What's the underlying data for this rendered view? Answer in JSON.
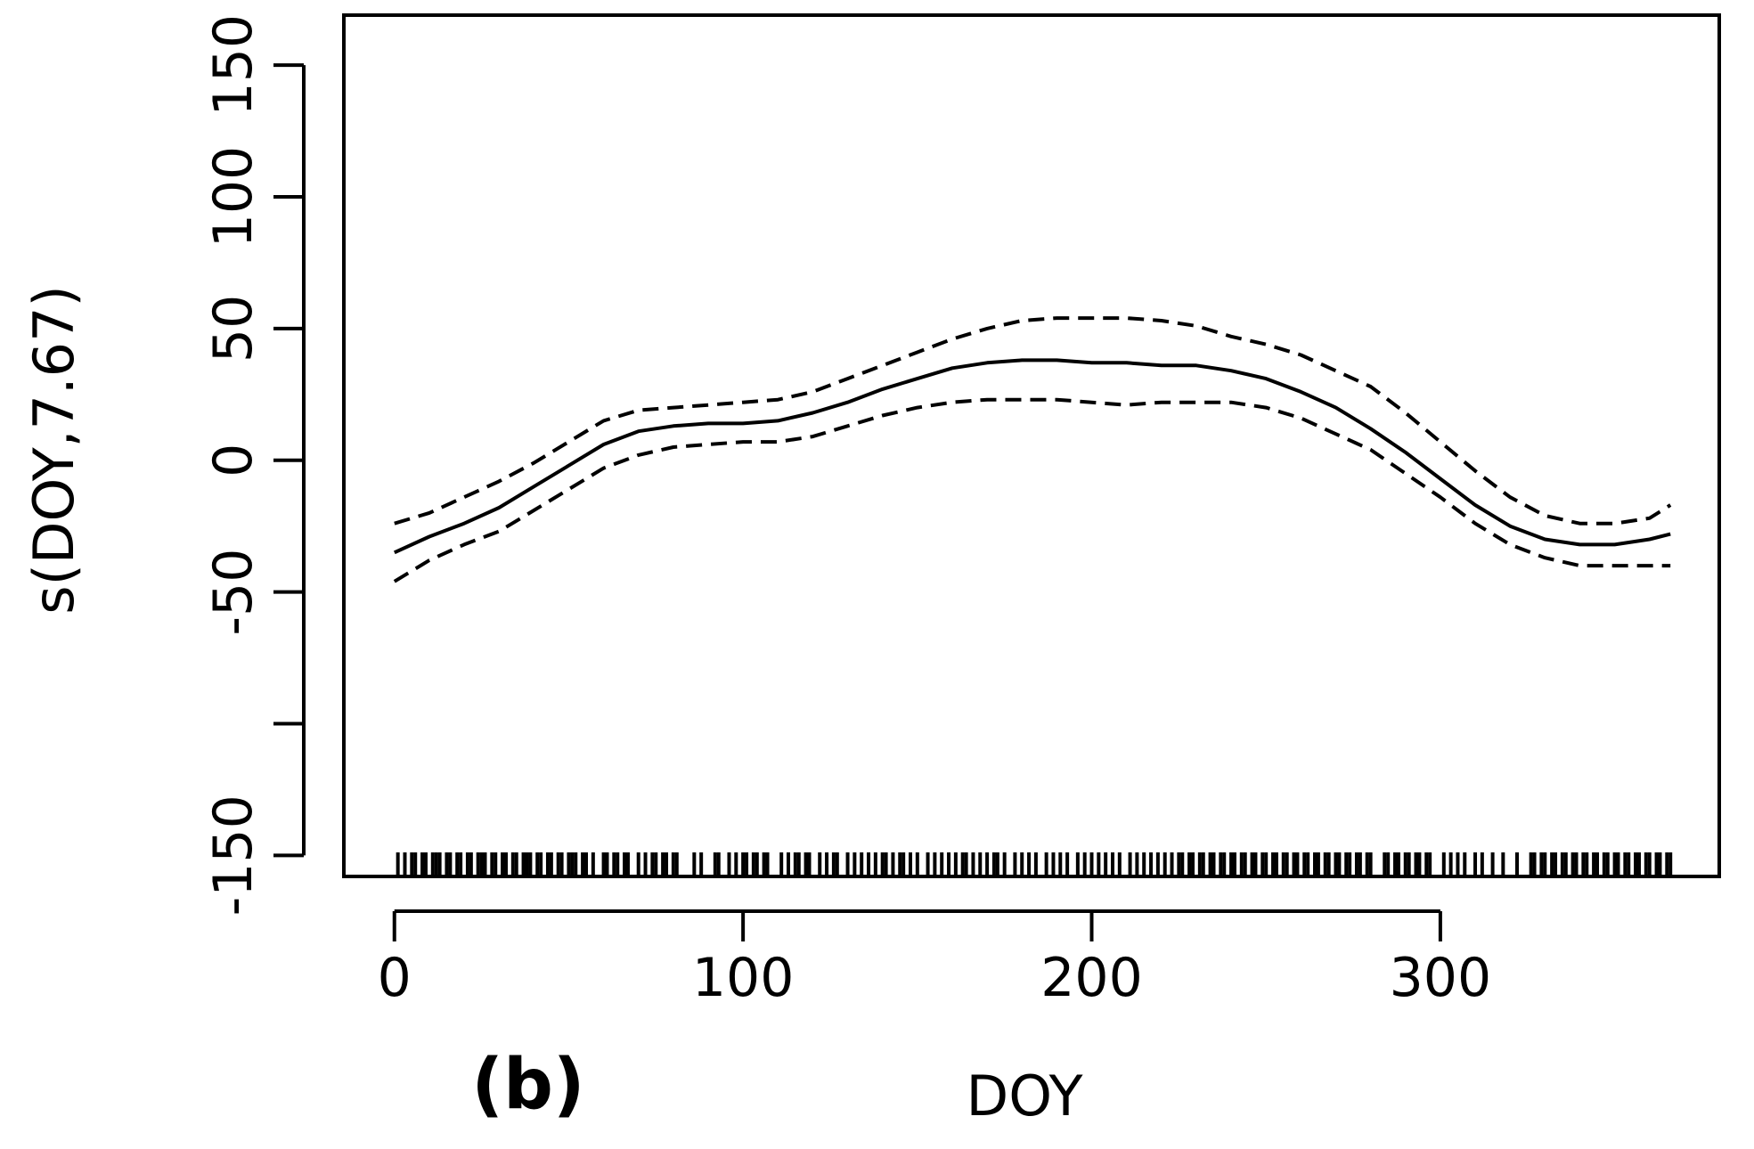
{
  "panel_label": "(b)",
  "chart_data": {
    "type": "line",
    "xlabel": "DOY",
    "ylabel": "s(DOY,7.67)",
    "xlim": [
      -14.5,
      380
    ],
    "ylim": [
      -158,
      169
    ],
    "x_ticks": [
      0,
      100,
      200,
      300
    ],
    "x_tick_labels": [
      "0",
      "100",
      "200",
      "300"
    ],
    "y_ticks": [
      -150,
      -100,
      -50,
      0,
      50,
      100,
      150
    ],
    "y_tick_labels": [
      "-150",
      "",
      "-50",
      "0",
      "50",
      "100",
      "150"
    ],
    "grid": false,
    "series": [
      {
        "role": "estimate",
        "style": "solid",
        "x": [
          0,
          10,
          20,
          30,
          40,
          50,
          60,
          70,
          80,
          90,
          100,
          110,
          120,
          130,
          140,
          150,
          160,
          170,
          180,
          190,
          200,
          210,
          220,
          230,
          240,
          250,
          260,
          270,
          280,
          290,
          300,
          310,
          320,
          330,
          340,
          350,
          360,
          366
        ],
        "y": [
          -35,
          -29,
          -24,
          -18,
          -10,
          -2,
          6,
          11,
          13,
          14,
          14,
          15,
          18,
          22,
          27,
          31,
          35,
          37,
          38,
          38,
          37,
          37,
          36,
          36,
          34,
          31,
          26,
          20,
          12,
          3,
          -7,
          -17,
          -25,
          -30,
          -32,
          -32,
          -30,
          -28
        ]
      },
      {
        "role": "upper",
        "style": "dashed",
        "x": [
          0,
          10,
          20,
          30,
          40,
          50,
          60,
          70,
          80,
          90,
          100,
          110,
          120,
          130,
          140,
          150,
          160,
          170,
          180,
          190,
          200,
          210,
          220,
          230,
          240,
          250,
          260,
          270,
          280,
          290,
          300,
          310,
          320,
          330,
          340,
          350,
          360,
          366
        ],
        "y": [
          -24,
          -20,
          -14,
          -8,
          -1,
          7,
          15,
          19,
          20,
          21,
          22,
          23,
          26,
          31,
          36,
          41,
          46,
          50,
          53,
          54,
          54,
          54,
          53,
          51,
          47,
          44,
          40,
          34,
          28,
          18,
          7,
          -4,
          -14,
          -21,
          -24,
          -24,
          -22,
          -17
        ]
      },
      {
        "role": "lower",
        "style": "dashed",
        "x": [
          0,
          10,
          20,
          30,
          40,
          50,
          60,
          70,
          80,
          90,
          100,
          110,
          120,
          130,
          140,
          150,
          160,
          170,
          180,
          190,
          200,
          210,
          220,
          230,
          240,
          250,
          260,
          270,
          280,
          290,
          300,
          310,
          320,
          330,
          340,
          350,
          360,
          366
        ],
        "y": [
          -46,
          -38,
          -32,
          -27,
          -19,
          -11,
          -3,
          2,
          5,
          6,
          7,
          7,
          9,
          13,
          17,
          20,
          22,
          23,
          23,
          23,
          22,
          21,
          22,
          22,
          22,
          20,
          16,
          10,
          4,
          -5,
          -14,
          -24,
          -32,
          -37,
          -40,
          -40,
          -40,
          -40
        ]
      }
    ],
    "rug": [
      1,
      3,
      5,
      6,
      8,
      9,
      11,
      12,
      13,
      15,
      16,
      18,
      19,
      21,
      22,
      24,
      25,
      26,
      28,
      29,
      31,
      32,
      34,
      35,
      37,
      38,
      39,
      41,
      42,
      44,
      45,
      47,
      48,
      50,
      51,
      52,
      54,
      55,
      57,
      60,
      61,
      63,
      64,
      66,
      67,
      70,
      72,
      74,
      75,
      77,
      78,
      80,
      81,
      86,
      88,
      92,
      93,
      96,
      98,
      100,
      101,
      103,
      104,
      106,
      107,
      111,
      113,
      115,
      116,
      118,
      119,
      122,
      124,
      126,
      127,
      130,
      132,
      134,
      136,
      138,
      140,
      141,
      143,
      145,
      146,
      148,
      150,
      153,
      155,
      157,
      159,
      161,
      163,
      164,
      166,
      168,
      170,
      172,
      173,
      175,
      178,
      180,
      182,
      184,
      187,
      189,
      191,
      193,
      196,
      198,
      200,
      202,
      204,
      206,
      208,
      211,
      213,
      215,
      217,
      219,
      221,
      223,
      225,
      226,
      228,
      229,
      231,
      232,
      234,
      235,
      237,
      238,
      240,
      241,
      243,
      244,
      246,
      247,
      249,
      250,
      252,
      253,
      255,
      256,
      258,
      259,
      261,
      262,
      264,
      265,
      267,
      268,
      270,
      271,
      273,
      274,
      276,
      277,
      279,
      280,
      284,
      285,
      287,
      288,
      290,
      291,
      293,
      294,
      296,
      297,
      301,
      303,
      305,
      307,
      310,
      312,
      315,
      318,
      322,
      326,
      327,
      329,
      330,
      332,
      333,
      335,
      336,
      338,
      339,
      341,
      342,
      344,
      345,
      347,
      348,
      350,
      351,
      353,
      354,
      356,
      357,
      359,
      360,
      362,
      363,
      365,
      366
    ]
  }
}
